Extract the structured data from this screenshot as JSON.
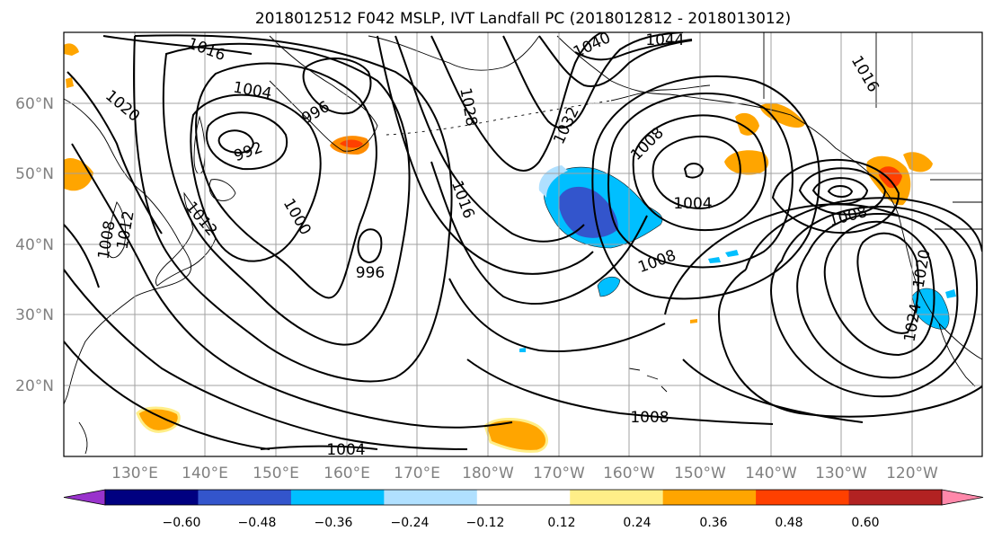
{
  "title": "2018012512 F042 MSLP, IVT Landfall PC (2018012812 - 2018013012)",
  "map": {
    "lat_labels": [
      "60°N",
      "50°N",
      "40°N",
      "30°N",
      "20°N"
    ],
    "lon_labels": [
      "130°E",
      "140°E",
      "150°E",
      "160°E",
      "170°E",
      "180°W",
      "170°W",
      "160°W",
      "150°W",
      "140°W",
      "130°W",
      "120°W"
    ],
    "isobar_labels": [
      "1016",
      "1004",
      "1020",
      "996",
      "992",
      "1028",
      "1040",
      "1044",
      "1032",
      "1008",
      "1004",
      "1008",
      "1016",
      "1000",
      "996",
      "1008",
      "1012",
      "1012",
      "1008",
      "1024",
      "1020",
      "1004",
      "1016",
      "1008"
    ],
    "colors": {
      "isobar": "#000000",
      "grid": "#a0a0a0",
      "land_outline": "#000000"
    }
  },
  "colorbar": {
    "colors": [
      "#9933cc",
      "#000080",
      "#3355cc",
      "#00bfff",
      "#b0e0ff",
      "#ffffff",
      "#ffee88",
      "#ffa500",
      "#ff4000",
      "#b22222",
      "#ff88aa"
    ],
    "tick_labels": [
      "−0.60",
      "−0.48",
      "−0.36",
      "−0.24",
      "−0.12",
      "0.12",
      "0.24",
      "0.36",
      "0.48",
      "0.60"
    ],
    "extend": "both"
  }
}
